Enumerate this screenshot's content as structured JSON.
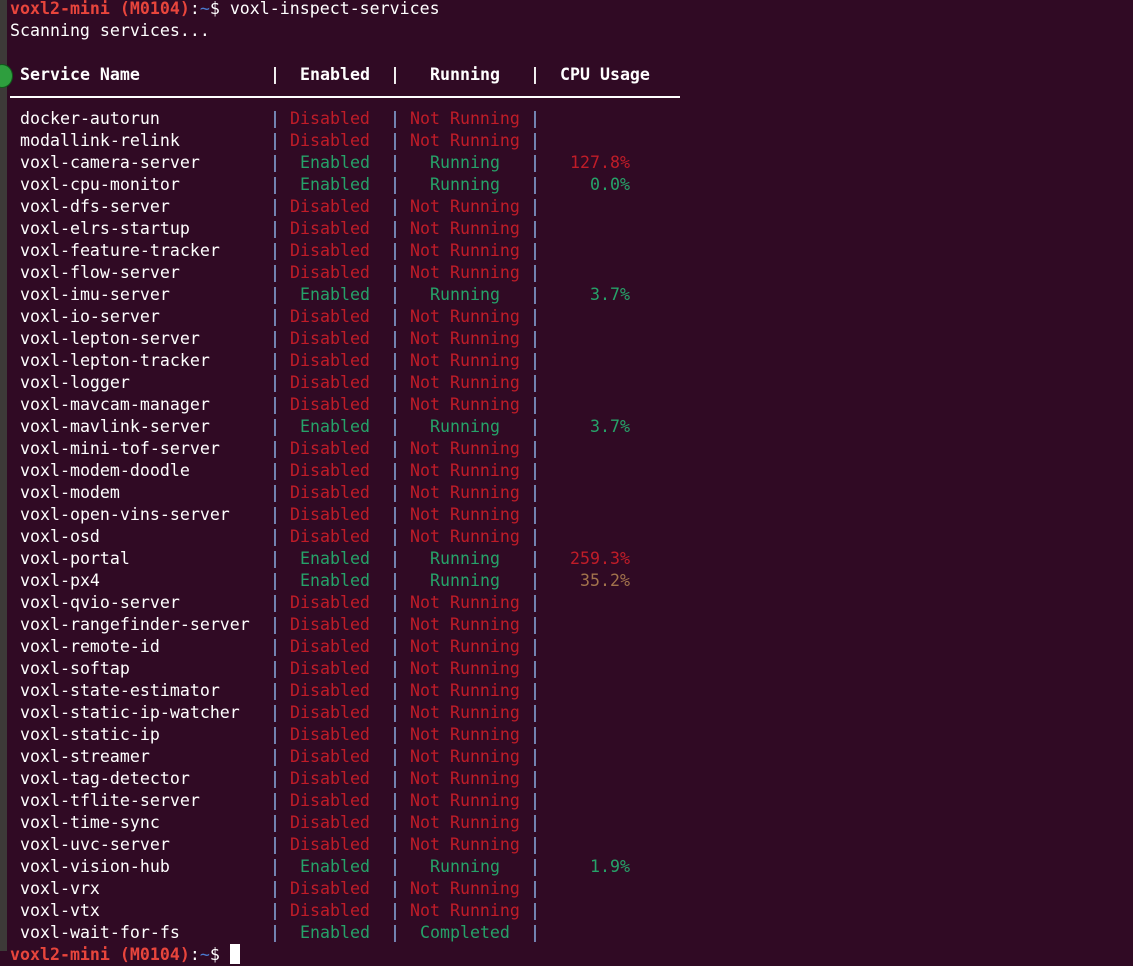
{
  "prompt": {
    "user_host": "voxl2-mini (M0104)",
    "colon": ":",
    "dir": "~",
    "symbol": "$ ",
    "command": "voxl-inspect-services"
  },
  "status_line": "Scanning services...",
  "table": {
    "headers": {
      "name": "Service Name",
      "enabled": "Enabled",
      "running": "Running",
      "cpu": "CPU Usage"
    },
    "separator": "|",
    "colors": {
      "disabled": "#c01c28",
      "enabled": "#26a269",
      "pipe": "#8fb4ea",
      "cpu_high": "#c01c28",
      "cpu_mid": "#a2734c",
      "cpu_low": "#26a269"
    },
    "rows": [
      {
        "name": "docker-autorun",
        "enabled": "Disabled",
        "running": "Not Running",
        "cpu": ""
      },
      {
        "name": "modallink-relink",
        "enabled": "Disabled",
        "running": "Not Running",
        "cpu": ""
      },
      {
        "name": "voxl-camera-server",
        "enabled": "Enabled",
        "running": "Running",
        "cpu": "127.8%",
        "cpu_level": "high"
      },
      {
        "name": "voxl-cpu-monitor",
        "enabled": "Enabled",
        "running": "Running",
        "cpu": "0.0%",
        "cpu_level": "low"
      },
      {
        "name": "voxl-dfs-server",
        "enabled": "Disabled",
        "running": "Not Running",
        "cpu": ""
      },
      {
        "name": "voxl-elrs-startup",
        "enabled": "Disabled",
        "running": "Not Running",
        "cpu": ""
      },
      {
        "name": "voxl-feature-tracker",
        "enabled": "Disabled",
        "running": "Not Running",
        "cpu": ""
      },
      {
        "name": "voxl-flow-server",
        "enabled": "Disabled",
        "running": "Not Running",
        "cpu": ""
      },
      {
        "name": "voxl-imu-server",
        "enabled": "Enabled",
        "running": "Running",
        "cpu": "3.7%",
        "cpu_level": "low"
      },
      {
        "name": "voxl-io-server",
        "enabled": "Disabled",
        "running": "Not Running",
        "cpu": ""
      },
      {
        "name": "voxl-lepton-server",
        "enabled": "Disabled",
        "running": "Not Running",
        "cpu": ""
      },
      {
        "name": "voxl-lepton-tracker",
        "enabled": "Disabled",
        "running": "Not Running",
        "cpu": ""
      },
      {
        "name": "voxl-logger",
        "enabled": "Disabled",
        "running": "Not Running",
        "cpu": ""
      },
      {
        "name": "voxl-mavcam-manager",
        "enabled": "Disabled",
        "running": "Not Running",
        "cpu": ""
      },
      {
        "name": "voxl-mavlink-server",
        "enabled": "Enabled",
        "running": "Running",
        "cpu": "3.7%",
        "cpu_level": "low"
      },
      {
        "name": "voxl-mini-tof-server",
        "enabled": "Disabled",
        "running": "Not Running",
        "cpu": ""
      },
      {
        "name": "voxl-modem-doodle",
        "enabled": "Disabled",
        "running": "Not Running",
        "cpu": ""
      },
      {
        "name": "voxl-modem",
        "enabled": "Disabled",
        "running": "Not Running",
        "cpu": ""
      },
      {
        "name": "voxl-open-vins-server",
        "enabled": "Disabled",
        "running": "Not Running",
        "cpu": ""
      },
      {
        "name": "voxl-osd",
        "enabled": "Disabled",
        "running": "Not Running",
        "cpu": ""
      },
      {
        "name": "voxl-portal",
        "enabled": "Enabled",
        "running": "Running",
        "cpu": "259.3%",
        "cpu_level": "high"
      },
      {
        "name": "voxl-px4",
        "enabled": "Enabled",
        "running": "Running",
        "cpu": "35.2%",
        "cpu_level": "mid"
      },
      {
        "name": "voxl-qvio-server",
        "enabled": "Disabled",
        "running": "Not Running",
        "cpu": ""
      },
      {
        "name": "voxl-rangefinder-server",
        "enabled": "Disabled",
        "running": "Not Running",
        "cpu": ""
      },
      {
        "name": "voxl-remote-id",
        "enabled": "Disabled",
        "running": "Not Running",
        "cpu": ""
      },
      {
        "name": "voxl-softap",
        "enabled": "Disabled",
        "running": "Not Running",
        "cpu": ""
      },
      {
        "name": "voxl-state-estimator",
        "enabled": "Disabled",
        "running": "Not Running",
        "cpu": ""
      },
      {
        "name": "voxl-static-ip-watcher",
        "enabled": "Disabled",
        "running": "Not Running",
        "cpu": ""
      },
      {
        "name": "voxl-static-ip",
        "enabled": "Disabled",
        "running": "Not Running",
        "cpu": ""
      },
      {
        "name": "voxl-streamer",
        "enabled": "Disabled",
        "running": "Not Running",
        "cpu": ""
      },
      {
        "name": "voxl-tag-detector",
        "enabled": "Disabled",
        "running": "Not Running",
        "cpu": ""
      },
      {
        "name": "voxl-tflite-server",
        "enabled": "Disabled",
        "running": "Not Running",
        "cpu": ""
      },
      {
        "name": "voxl-time-sync",
        "enabled": "Disabled",
        "running": "Not Running",
        "cpu": ""
      },
      {
        "name": "voxl-uvc-server",
        "enabled": "Disabled",
        "running": "Not Running",
        "cpu": ""
      },
      {
        "name": "voxl-vision-hub",
        "enabled": "Enabled",
        "running": "Running",
        "cpu": "1.9%",
        "cpu_level": "low"
      },
      {
        "name": "voxl-vrx",
        "enabled": "Disabled",
        "running": "Not Running",
        "cpu": ""
      },
      {
        "name": "voxl-vtx",
        "enabled": "Disabled",
        "running": "Not Running",
        "cpu": ""
      },
      {
        "name": "voxl-wait-for-fs",
        "enabled": "Enabled",
        "running": "Completed",
        "cpu": ""
      }
    ]
  },
  "final_prompt": {
    "user_host": "voxl2-mini (M0104)",
    "colon": ":",
    "dir": "~",
    "symbol": "$ "
  }
}
